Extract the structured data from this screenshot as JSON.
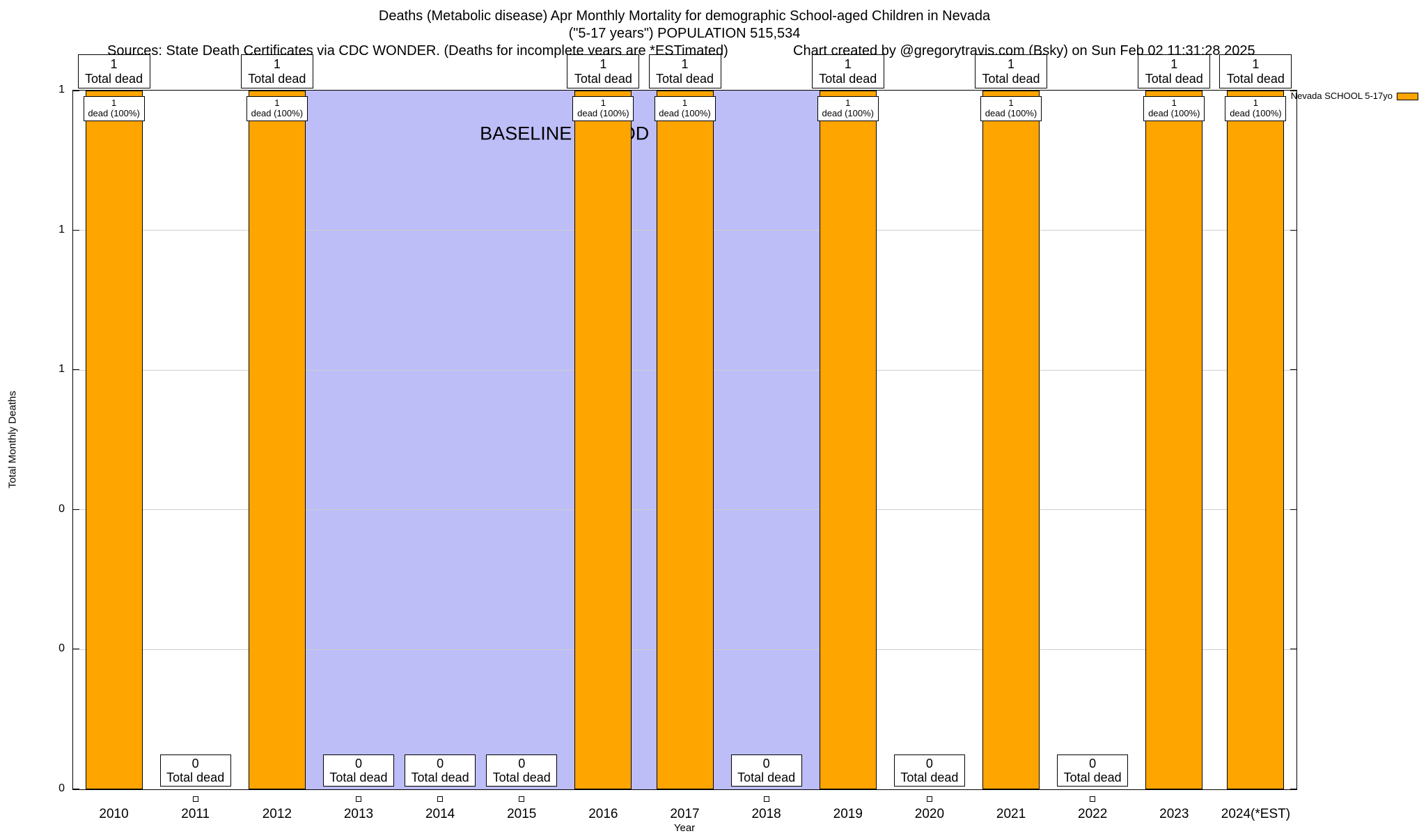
{
  "header": {
    "title_line1": "Deaths (Metabolic disease) Apr Monthly Mortality for demographic School-aged Children in Nevada",
    "title_line2": "(\"5-17 years\") POPULATION 515,534",
    "sources": "Sources: State Death Certificates via CDC WONDER. (Deaths for incomplete years are *ESTimated)",
    "credit": "Chart created by @gregorytravis.com (Bsky) on Sun Feb 02 11:31:28 2025"
  },
  "chart_data": {
    "type": "bar",
    "title": "Deaths (Metabolic disease) Apr Monthly Mortality for demographic School-aged Children in Nevada (\"5-17 years\") POPULATION 515,534",
    "xlabel": "Year",
    "ylabel": "Total Monthly Deaths",
    "ylim": [
      0,
      1
    ],
    "y_tick_labels_bottom_to_top": [
      "0",
      "0",
      "0",
      "1",
      "1",
      "1"
    ],
    "categories": [
      "2010",
      "2011",
      "2012",
      "2013",
      "2014",
      "2015",
      "2016",
      "2017",
      "2018",
      "2019",
      "2020",
      "2021",
      "2022",
      "2023",
      "2024(*EST)"
    ],
    "values": [
      1,
      0,
      1,
      0,
      0,
      0,
      1,
      1,
      0,
      1,
      0,
      1,
      0,
      1,
      1
    ],
    "series_name": "Nevada SCHOOL 5-17yo",
    "bar_color": "#FFA500",
    "grid": true,
    "legend_position": "top-right",
    "baseline_region": {
      "label": "BASELINE PERIOD",
      "from_category": "2012",
      "to_category": "2019",
      "color": "#BDBDF8"
    },
    "annotations": {
      "total_dead_label": "Total dead",
      "inside_label": "dead (100%)"
    }
  }
}
